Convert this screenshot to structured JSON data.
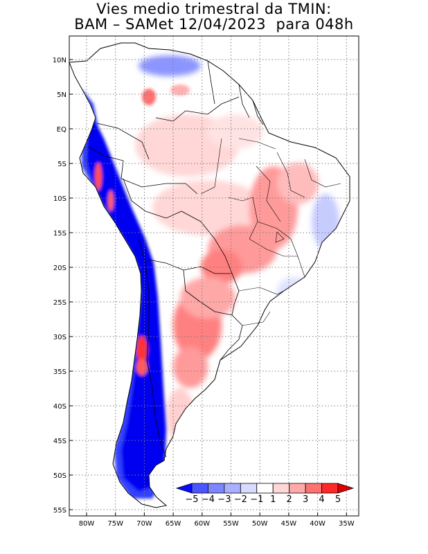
{
  "title": {
    "line1": "Vies medio trimestral da TMIN:",
    "line2": "BAM – SAMet 12/04/2023  para 048h"
  },
  "map": {
    "region": "South America",
    "lon_range": [
      -83,
      -34
    ],
    "lat_range": [
      -56,
      13
    ],
    "grid": true,
    "x_ticks": [
      {
        "lon": -80,
        "label": "80W"
      },
      {
        "lon": -75,
        "label": "75W"
      },
      {
        "lon": -70,
        "label": "70W"
      },
      {
        "lon": -65,
        "label": "65W"
      },
      {
        "lon": -60,
        "label": "60W"
      },
      {
        "lon": -55,
        "label": "55W"
      },
      {
        "lon": -50,
        "label": "50W"
      },
      {
        "lon": -45,
        "label": "45W"
      },
      {
        "lon": -40,
        "label": "40W"
      },
      {
        "lon": -35,
        "label": "35W"
      }
    ],
    "y_ticks": [
      {
        "lat": 10,
        "label": "10N"
      },
      {
        "lat": 5,
        "label": "5N"
      },
      {
        "lat": 0,
        "label": "EQ"
      },
      {
        "lat": -5,
        "label": "5S"
      },
      {
        "lat": -10,
        "label": "10S"
      },
      {
        "lat": -15,
        "label": "15S"
      },
      {
        "lat": -20,
        "label": "20S"
      },
      {
        "lat": -25,
        "label": "25S"
      },
      {
        "lat": -30,
        "label": "30S"
      },
      {
        "lat": -35,
        "label": "35S"
      },
      {
        "lat": -40,
        "label": "40S"
      },
      {
        "lat": -45,
        "label": "45S"
      },
      {
        "lat": -50,
        "label": "50S"
      },
      {
        "lat": -55,
        "label": "55S"
      }
    ]
  },
  "colorbar": {
    "labels": [
      "−5",
      "−4",
      "−3",
      "−2",
      "−1",
      "1",
      "2",
      "3",
      "4",
      "5"
    ],
    "colors": [
      "#0a0aff",
      "#4a55ff",
      "#7d86ff",
      "#a9b0ff",
      "#d6dbff",
      "#ffffff",
      "#ffd7d7",
      "#ffaaaa",
      "#ff7272",
      "#ff2828",
      "#e00000"
    ]
  }
}
